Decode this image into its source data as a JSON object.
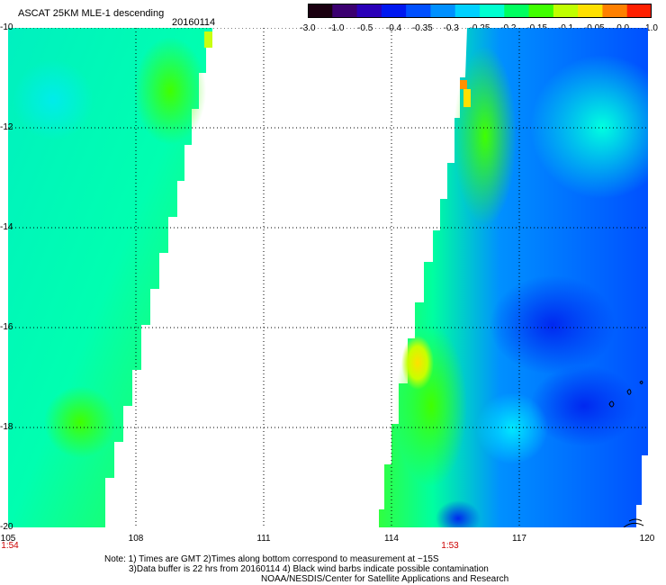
{
  "header": {
    "title": "ASCAT 25KM MLE-1 descending",
    "date": "20160114"
  },
  "colorbar": {
    "labels": [
      "-3.0",
      "-1.0",
      "-0.5",
      "-0.4",
      "-0.35",
      "-0.3",
      "-0.25",
      "-0.2",
      "-0.15",
      "-0.1",
      "-0.05",
      "0.0",
      "1.0"
    ],
    "colors": [
      "#1a0010",
      "#3b0070",
      "#2a00b8",
      "#0018f0",
      "#0050ff",
      "#0090ff",
      "#00d0ff",
      "#00ffd0",
      "#00ff60",
      "#40ff00",
      "#c0ff00",
      "#ffe000",
      "#ff8000",
      "#ff2000"
    ]
  },
  "axes": {
    "y_labels": [
      "-10",
      "-12",
      "-14",
      "-16",
      "-18",
      "-20"
    ],
    "x_labels": [
      "105",
      "108",
      "111",
      "114",
      "117",
      "120"
    ],
    "lon_range": [
      105,
      120
    ],
    "lat_range": [
      -20,
      -10
    ]
  },
  "times": {
    "left": "1:54",
    "middle": "1:53"
  },
  "notes": {
    "line1": "Note: 1) Times are GMT 2)Times along bottom correspond to measurement at ~15S",
    "line2": "3)Data buffer is 22 hrs from 20160114 4) Black wind barbs indicate possible contamination",
    "line3": "NOAA/NESDIS/Center for Satellite Applications and Research"
  },
  "map": {
    "projection": "lat-lon",
    "grid": "dotted",
    "palette_meaning": "low values blue, high values yellow/red",
    "swaths": [
      {
        "name": "west swath",
        "lon_west_edge": 105,
        "lon_east_edge_at_top": 110.2,
        "lon_east_edge_at_bottom": 107.0,
        "dominant_color": "cyan-green"
      },
      {
        "name": "east swath",
        "lon_west_edge_at_top": 115.4,
        "lon_west_edge_at_bottom": 113.6,
        "lon_east_edge": 120,
        "dominant_color": "blue-cyan-green"
      }
    ]
  }
}
